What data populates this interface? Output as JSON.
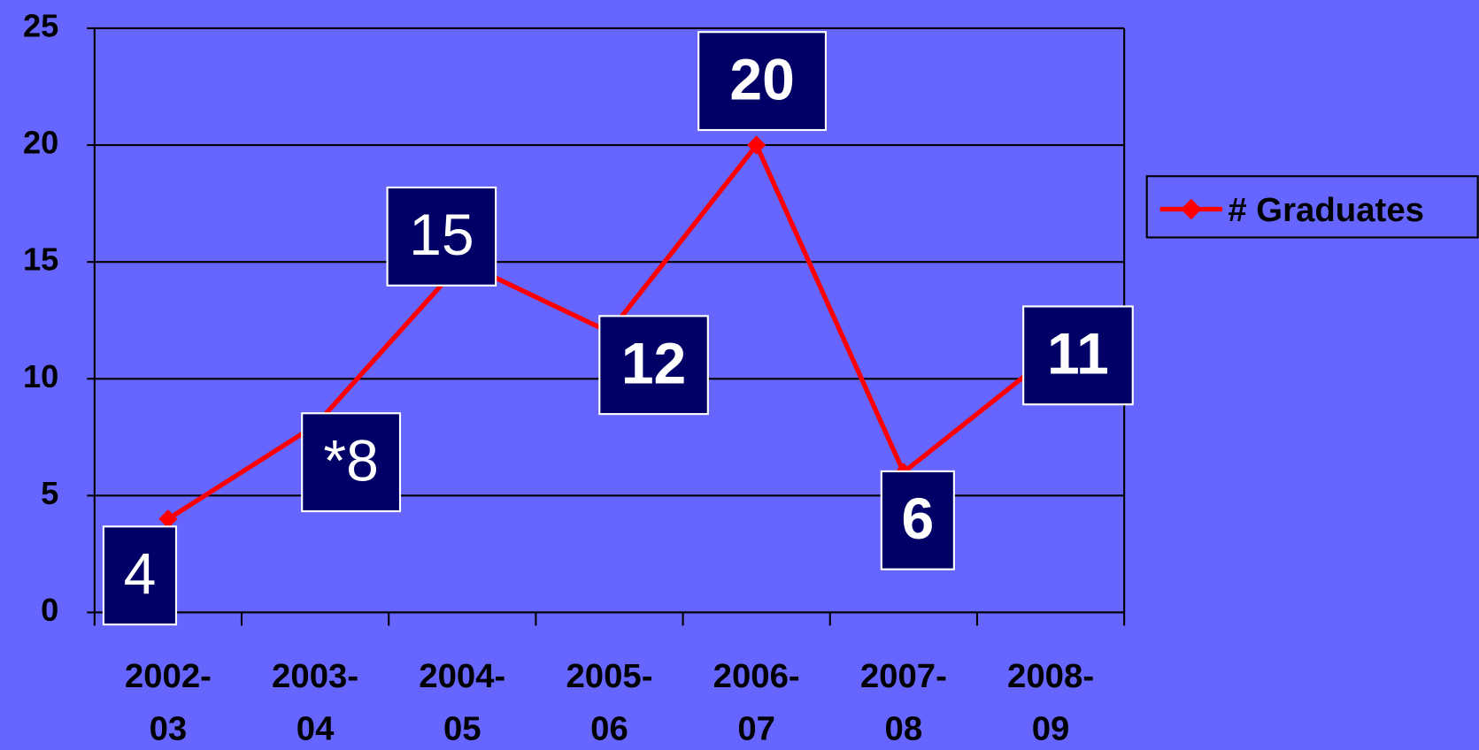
{
  "chart_data": {
    "type": "line",
    "categories": [
      "2002-03",
      "2003-04",
      "2004-05",
      "2005-06",
      "2006-07",
      "2007-08",
      "2008-09"
    ],
    "series": [
      {
        "name": "# Graduates",
        "color": "#ff0000",
        "values": [
          4,
          8,
          15,
          12,
          20,
          6,
          11
        ],
        "value_labels": [
          "4",
          "*8",
          "15",
          "12",
          "20",
          "6",
          "11"
        ]
      }
    ],
    "ylim": [
      0,
      25
    ],
    "yticks": [
      0,
      5,
      10,
      15,
      20,
      25
    ],
    "grid": true,
    "legend": "right"
  }
}
